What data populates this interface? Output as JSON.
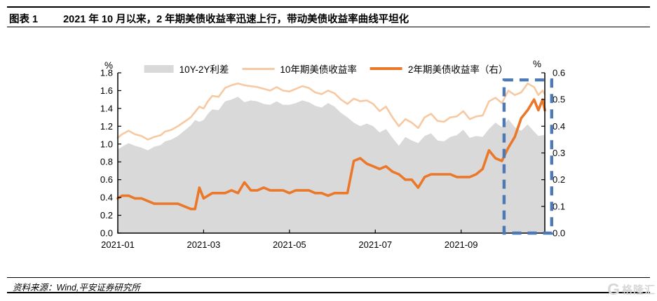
{
  "header": {
    "tag": "图表 1",
    "title": "2021 年 10 月以来，2 年期美债收益率迅速上行，带动美债收益率曲线平坦化"
  },
  "footer": {
    "source": "资料来源：Wind,平安证券研究所",
    "watermark_icon": "G",
    "watermark": "格隆汇"
  },
  "chart_data": {
    "type": "line",
    "title": "2021年10月以来，2年期美债收益率迅速上行，带动美债收益率曲线平坦化",
    "legend_position": "top-center",
    "grid": false,
    "axis_color": "#000000",
    "x_axis": {
      "unit": "months since 2021-01-01",
      "max_month": 9.95,
      "ticks": [
        {
          "m": 0,
          "label": "2021-01"
        },
        {
          "m": 2,
          "label": "2021-03"
        },
        {
          "m": 4,
          "label": "2021-05"
        },
        {
          "m": 6,
          "label": "2021-07"
        },
        {
          "m": 8,
          "label": "2021-09"
        }
      ]
    },
    "left_axis": {
      "title": "%",
      "min": 0,
      "max": 1.8,
      "step": 0.2,
      "tick_labels": [
        "0.0",
        "0.2",
        "0.4",
        "0.6",
        "0.8",
        "1.0",
        "1.2",
        "1.4",
        "1.6",
        "1.8"
      ]
    },
    "right_axis": {
      "title": "%",
      "min": 0,
      "max": 0.6,
      "step": 0.1,
      "tick_labels": [
        "0.0",
        "0.1",
        "0.2",
        "0.3",
        "0.4",
        "0.5",
        "0.6"
      ]
    },
    "x": [
      0.0,
      0.1,
      0.25,
      0.4,
      0.55,
      0.7,
      0.85,
      1.0,
      1.1,
      1.25,
      1.4,
      1.55,
      1.7,
      1.8,
      1.9,
      2.0,
      2.1,
      2.2,
      2.35,
      2.5,
      2.65,
      2.8,
      2.95,
      3.1,
      3.25,
      3.4,
      3.55,
      3.7,
      3.85,
      4.0,
      4.15,
      4.3,
      4.45,
      4.6,
      4.75,
      4.9,
      5.05,
      5.2,
      5.35,
      5.5,
      5.65,
      5.8,
      5.95,
      6.1,
      6.25,
      6.4,
      6.55,
      6.7,
      6.85,
      7.0,
      7.15,
      7.3,
      7.45,
      7.6,
      7.75,
      7.9,
      8.05,
      8.2,
      8.35,
      8.5,
      8.65,
      8.8,
      8.95,
      9.1,
      9.25,
      9.4,
      9.55,
      9.7,
      9.8,
      9.9,
      9.95
    ],
    "series": [
      {
        "name": "10Y-2Y利差",
        "render": "area",
        "axis": "left",
        "color": "#D9D9D9",
        "values": [
          0.94,
          0.97,
          1.01,
          0.98,
          0.96,
          0.93,
          0.97,
          0.99,
          1.03,
          1.05,
          1.09,
          1.15,
          1.21,
          1.27,
          1.25,
          1.27,
          1.34,
          1.39,
          1.38,
          1.48,
          1.5,
          1.53,
          1.47,
          1.49,
          1.48,
          1.45,
          1.44,
          1.48,
          1.44,
          1.44,
          1.46,
          1.49,
          1.47,
          1.43,
          1.41,
          1.46,
          1.42,
          1.35,
          1.3,
          1.24,
          1.2,
          1.23,
          1.2,
          1.13,
          1.17,
          1.07,
          0.98,
          1.08,
          1.04,
          1.01,
          1.09,
          1.12,
          1.04,
          1.03,
          1.08,
          1.1,
          1.16,
          1.07,
          1.09,
          1.08,
          1.17,
          1.24,
          1.19,
          1.28,
          1.19,
          1.15,
          1.22,
          1.14,
          1.09,
          1.1,
          1.1
        ]
      },
      {
        "name": "10年期美债收益率",
        "render": "line",
        "axis": "left",
        "color": "#F7C9A2",
        "width": 2.6,
        "values": [
          1.07,
          1.11,
          1.15,
          1.11,
          1.09,
          1.05,
          1.08,
          1.1,
          1.14,
          1.16,
          1.2,
          1.25,
          1.3,
          1.36,
          1.42,
          1.4,
          1.48,
          1.54,
          1.53,
          1.63,
          1.66,
          1.68,
          1.66,
          1.65,
          1.64,
          1.62,
          1.6,
          1.64,
          1.6,
          1.59,
          1.62,
          1.65,
          1.63,
          1.58,
          1.56,
          1.6,
          1.57,
          1.5,
          1.45,
          1.51,
          1.48,
          1.49,
          1.45,
          1.37,
          1.42,
          1.3,
          1.2,
          1.28,
          1.24,
          1.18,
          1.3,
          1.34,
          1.26,
          1.25,
          1.3,
          1.31,
          1.37,
          1.28,
          1.31,
          1.32,
          1.48,
          1.52,
          1.46,
          1.6,
          1.55,
          1.58,
          1.68,
          1.64,
          1.55,
          1.6,
          1.56
        ]
      },
      {
        "name": "2年期美债收益率（右）",
        "render": "line",
        "axis": "right",
        "color": "#EB7728",
        "width": 3.6,
        "values": [
          0.13,
          0.14,
          0.14,
          0.13,
          0.13,
          0.12,
          0.11,
          0.11,
          0.11,
          0.11,
          0.11,
          0.1,
          0.09,
          0.09,
          0.17,
          0.13,
          0.14,
          0.15,
          0.15,
          0.15,
          0.16,
          0.15,
          0.19,
          0.16,
          0.16,
          0.17,
          0.16,
          0.16,
          0.16,
          0.15,
          0.16,
          0.16,
          0.16,
          0.15,
          0.15,
          0.14,
          0.15,
          0.15,
          0.15,
          0.27,
          0.28,
          0.26,
          0.25,
          0.24,
          0.25,
          0.23,
          0.22,
          0.2,
          0.2,
          0.17,
          0.21,
          0.22,
          0.22,
          0.22,
          0.22,
          0.21,
          0.21,
          0.21,
          0.22,
          0.24,
          0.31,
          0.28,
          0.27,
          0.32,
          0.36,
          0.43,
          0.46,
          0.5,
          0.46,
          0.5,
          0.46
        ]
      }
    ],
    "highlight_box": {
      "style": "dashed",
      "color": "#4E79B7",
      "x_left_month": 9.0,
      "x_right_month": 10.11,
      "top_value_left_axis": 1.72,
      "bottom_value_left_axis": 0.0
    }
  }
}
